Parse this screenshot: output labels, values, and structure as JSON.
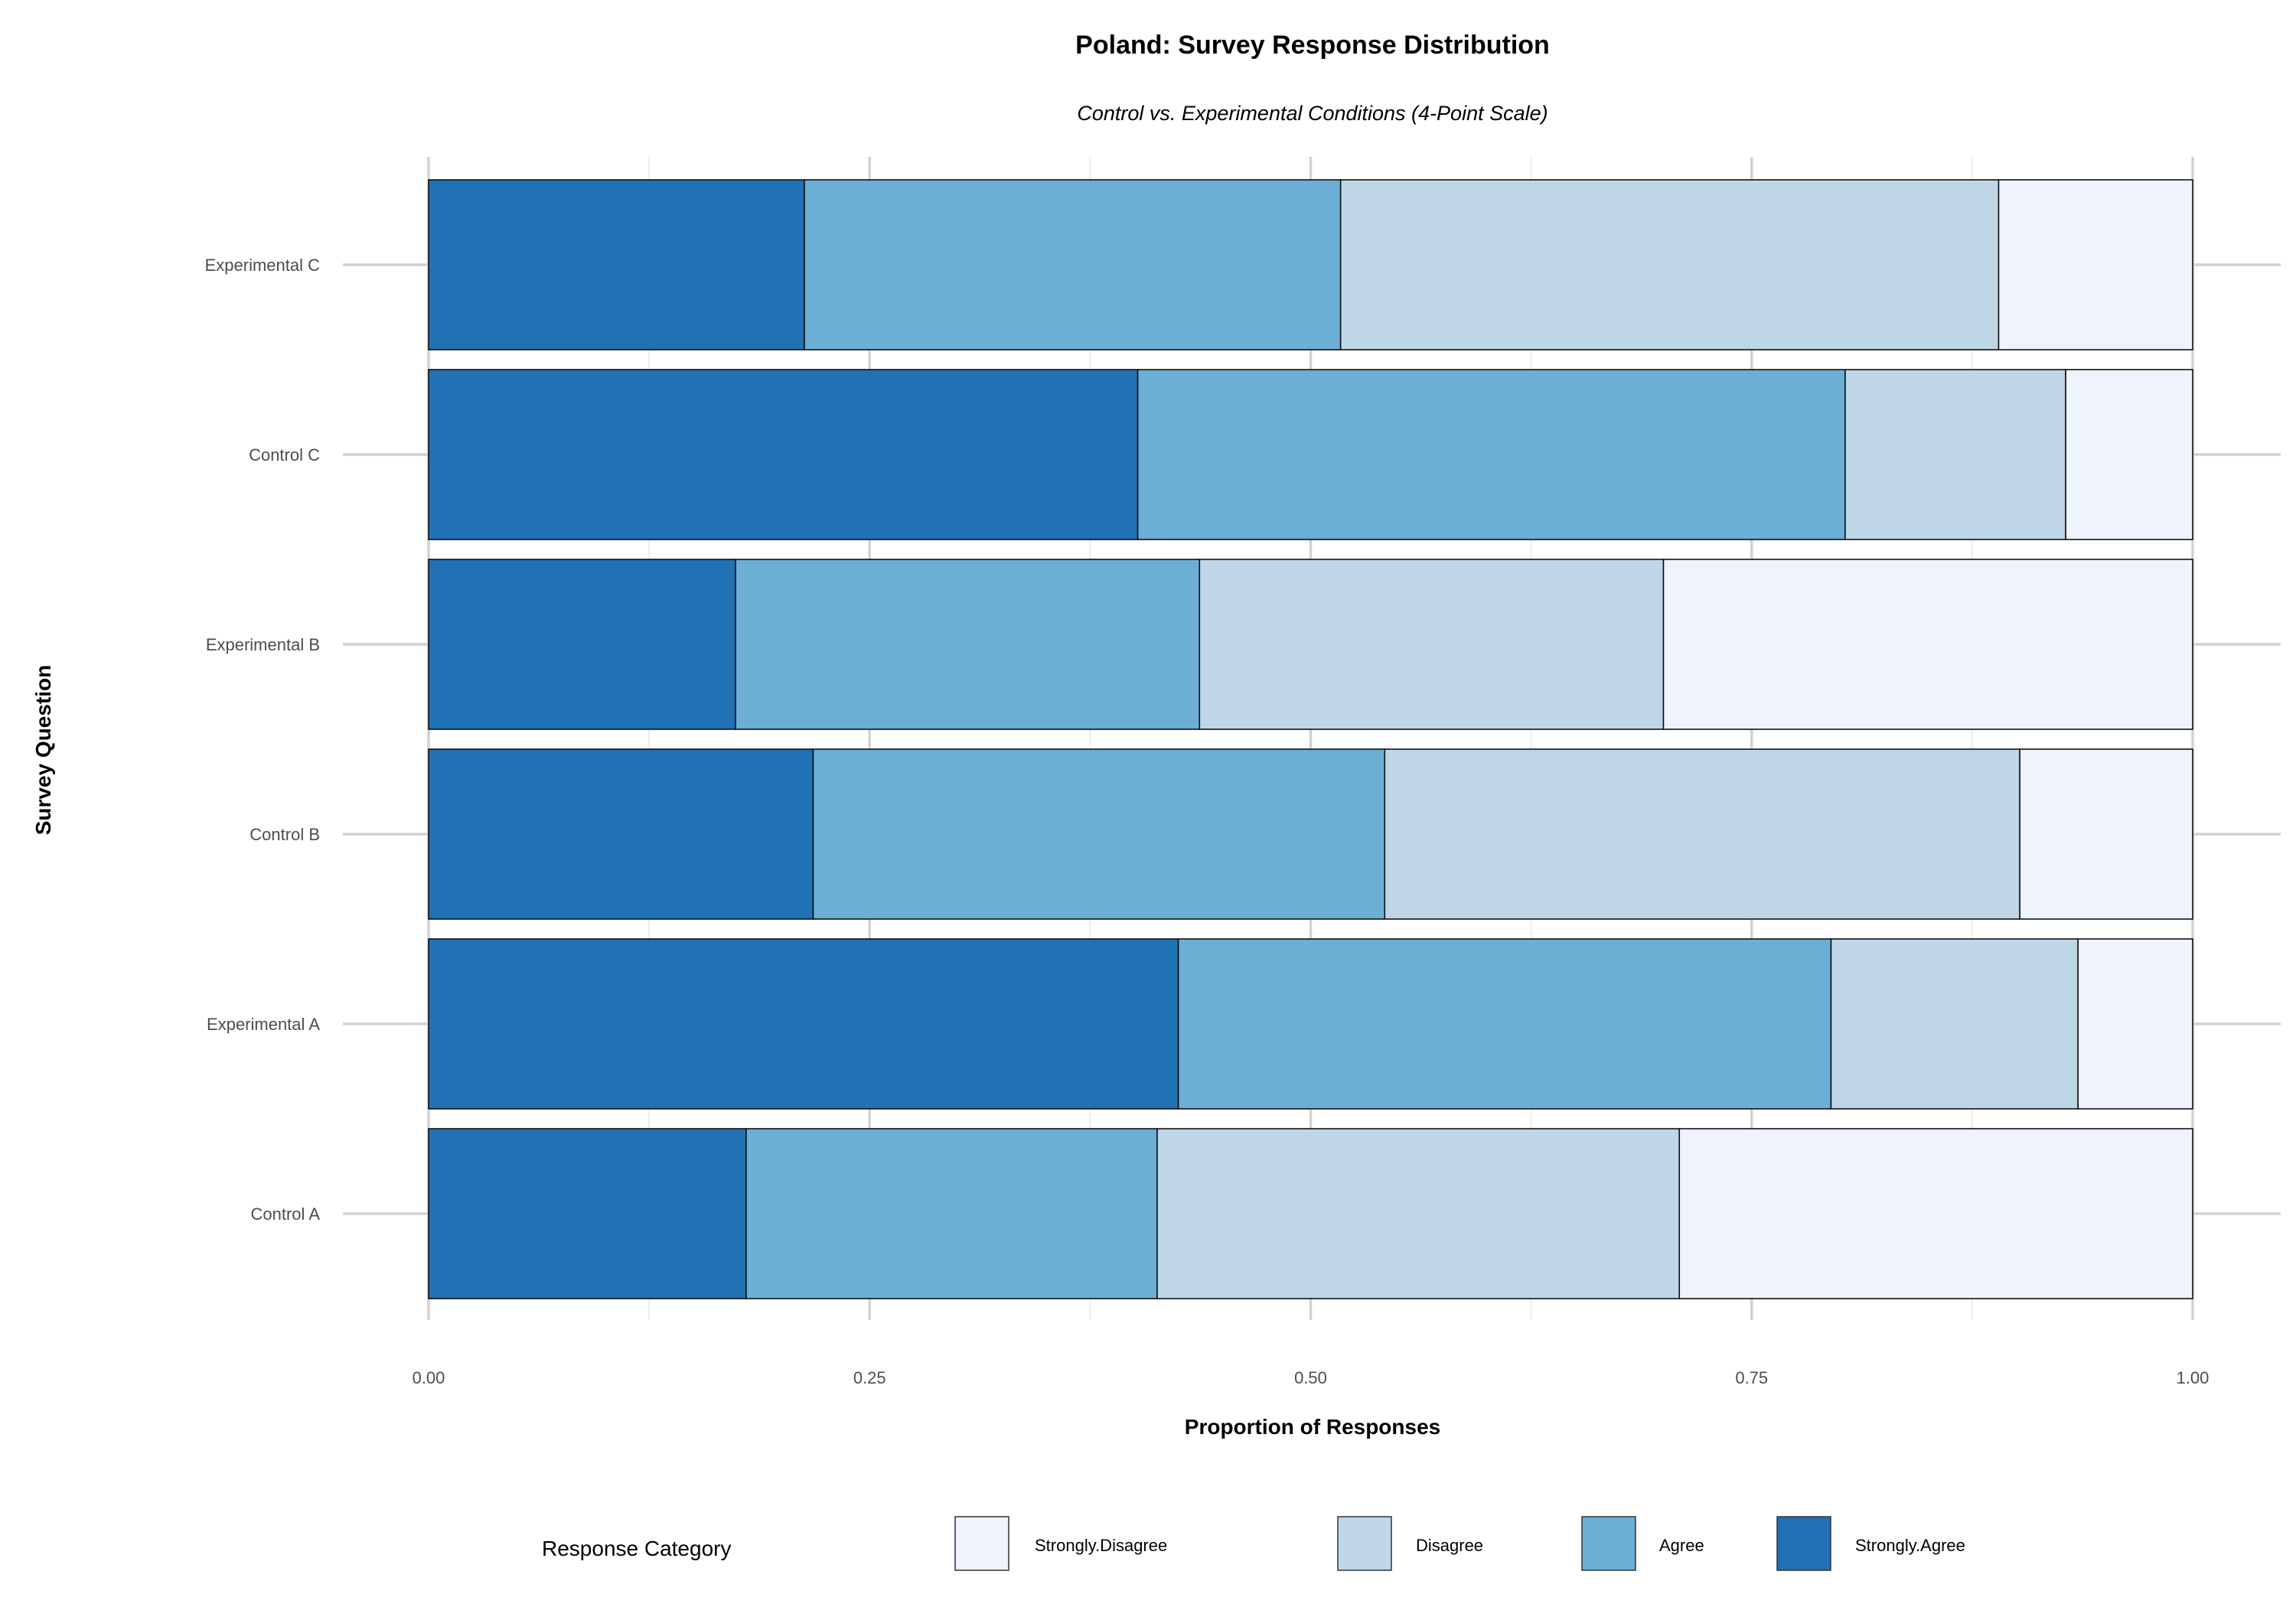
{
  "chart_data": {
    "type": "bar",
    "orientation": "horizontal",
    "stacked": true,
    "title": "Poland: Survey Response Distribution",
    "subtitle": "Control vs. Experimental Conditions (4-Point Scale)",
    "xlabel": "Proportion of Responses",
    "ylabel": "Survey Question",
    "xlim": [
      0,
      1
    ],
    "x_ticks": [
      "0.00",
      "0.25",
      "0.50",
      "0.75",
      "1.00"
    ],
    "grid": true,
    "legend_position": "bottom",
    "categories": [
      "Control A",
      "Experimental A",
      "Control B",
      "Experimental B",
      "Control C",
      "Experimental C"
    ],
    "series": [
      {
        "name": "Strongly.Agree",
        "color": "#2171b5",
        "values": [
          0.18,
          0.425,
          0.218,
          0.174,
          0.402,
          0.213
        ]
      },
      {
        "name": "Agree",
        "color": "#6baed6",
        "values": [
          0.233,
          0.37,
          0.324,
          0.263,
          0.401,
          0.304
        ]
      },
      {
        "name": "Disagree",
        "color": "#bfd6e6",
        "values": [
          0.296,
          0.14,
          0.36,
          0.263,
          0.125,
          0.373
        ]
      },
      {
        "name": "Strongly.Disagree",
        "color": "#eef3fd",
        "values": [
          0.291,
          0.065,
          0.098,
          0.3,
          0.072,
          0.11
        ]
      }
    ],
    "legend": {
      "title": "Response Category",
      "order": [
        "Strongly.Disagree",
        "Disagree",
        "Agree",
        "Strongly.Agree"
      ]
    }
  }
}
